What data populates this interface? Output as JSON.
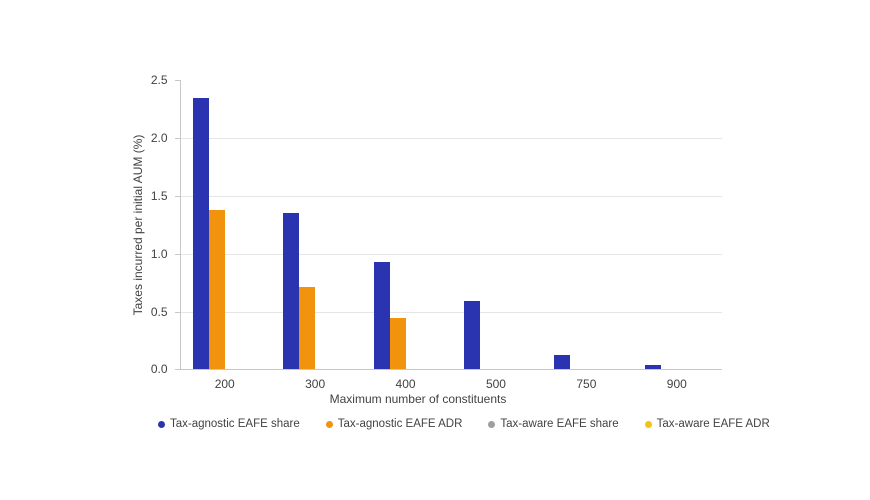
{
  "chart_data": {
    "type": "bar",
    "title": "",
    "xlabel": "Maximum number of constituents",
    "ylabel": "Taxes incurred per initial AUM (%)",
    "categories": [
      "200",
      "300",
      "400",
      "500",
      "750",
      "900"
    ],
    "series": [
      {
        "name": "Tax-agnostic EAFE share",
        "color": "#2A34B0",
        "values": [
          2.35,
          1.35,
          0.93,
          0.59,
          0.12,
          0.04
        ]
      },
      {
        "name": "Tax-agnostic EAFE ADR",
        "color": "#F1930D",
        "values": [
          1.38,
          0.71,
          0.44,
          0,
          0,
          0
        ]
      },
      {
        "name": "Tax-aware EAFE share",
        "color": "#9E9E9E",
        "values": [
          0,
          0,
          0,
          0,
          0,
          0
        ]
      },
      {
        "name": "Tax-aware EAFE ADR",
        "color": "#F0C317",
        "values": [
          0,
          0,
          0,
          0,
          0,
          0
        ]
      }
    ],
    "ylim": [
      0,
      2.5
    ],
    "yticks": [
      0.0,
      0.5,
      1.0,
      1.5,
      2.0,
      2.5
    ],
    "ytick_labels": [
      "0.0",
      "0.5",
      "1.0",
      "1.5",
      "2.0",
      "2.5"
    ],
    "grid": true,
    "legend_position": "bottom"
  },
  "colors": {
    "gridline": "#e6e6e6",
    "axis": "#c7c7c7",
    "text": "#424242",
    "background": "#ffffff"
  }
}
